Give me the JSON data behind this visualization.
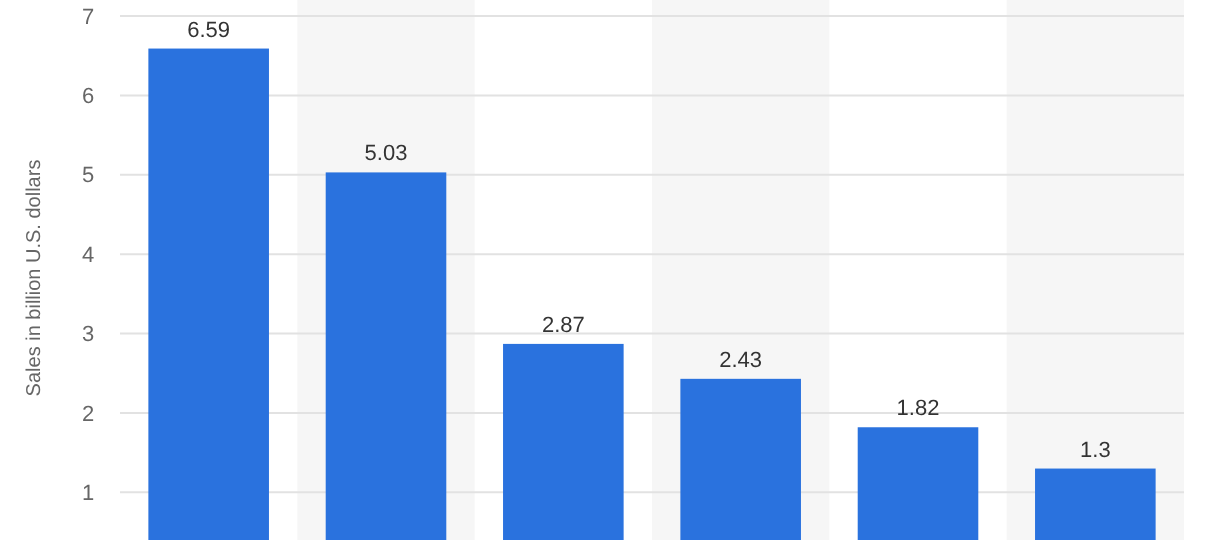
{
  "chart_data": {
    "type": "bar",
    "ylabel": "Sales in billion U.S. dollars",
    "categories": [
      null,
      null,
      null,
      null,
      null,
      null
    ],
    "values": [
      6.59,
      5.03,
      2.87,
      2.43,
      1.82,
      1.3
    ],
    "color": "#2a72de",
    "data_labels": true,
    "ylim": [
      0.4,
      7
    ],
    "yticks": [
      1,
      2,
      3,
      4,
      5,
      6,
      7
    ],
    "grid": "y"
  }
}
